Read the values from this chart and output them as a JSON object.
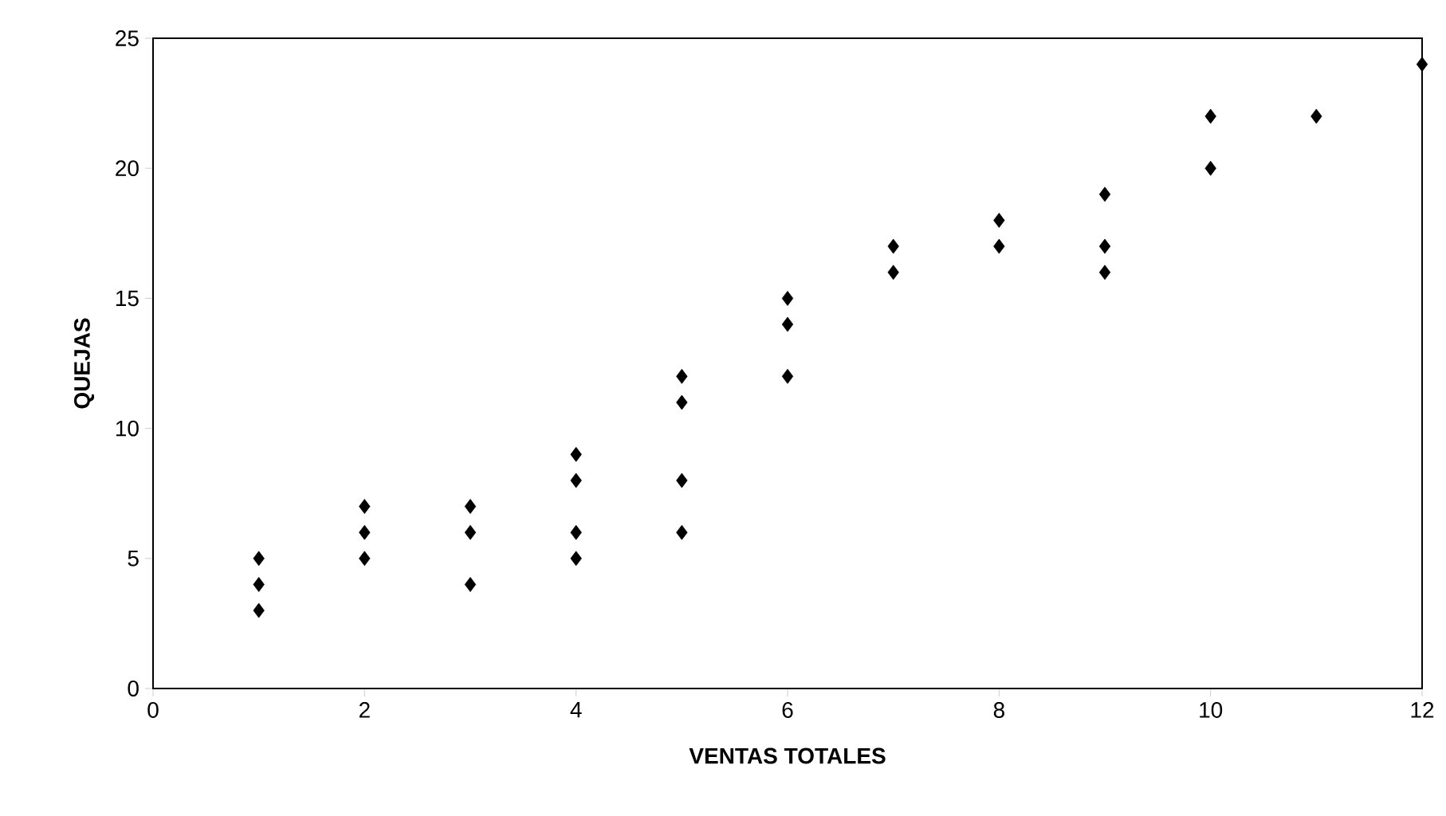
{
  "chart_data": {
    "type": "scatter",
    "xlabel": "VENTAS TOTALES",
    "ylabel": "QUEJAS",
    "x": [
      1,
      1,
      1,
      2,
      2,
      2,
      3,
      3,
      3,
      4,
      4,
      4,
      4,
      5,
      5,
      5,
      5,
      6,
      6,
      6,
      7,
      7,
      8,
      8,
      9,
      9,
      9,
      10,
      10,
      11,
      12
    ],
    "values": [
      3,
      4,
      5,
      5,
      6,
      7,
      4,
      6,
      7,
      5,
      6,
      8,
      9,
      6,
      8,
      11,
      12,
      12,
      14,
      15,
      16,
      17,
      17,
      18,
      16,
      17,
      19,
      20,
      22,
      22,
      24
    ],
    "color": "#000000",
    "marker": "diamond",
    "xlim": [
      0,
      12
    ],
    "ylim": [
      0,
      25
    ],
    "xticks": [
      0,
      2,
      4,
      6,
      8,
      10,
      12
    ],
    "yticks": [
      0,
      5,
      10,
      15,
      20,
      25
    ]
  }
}
